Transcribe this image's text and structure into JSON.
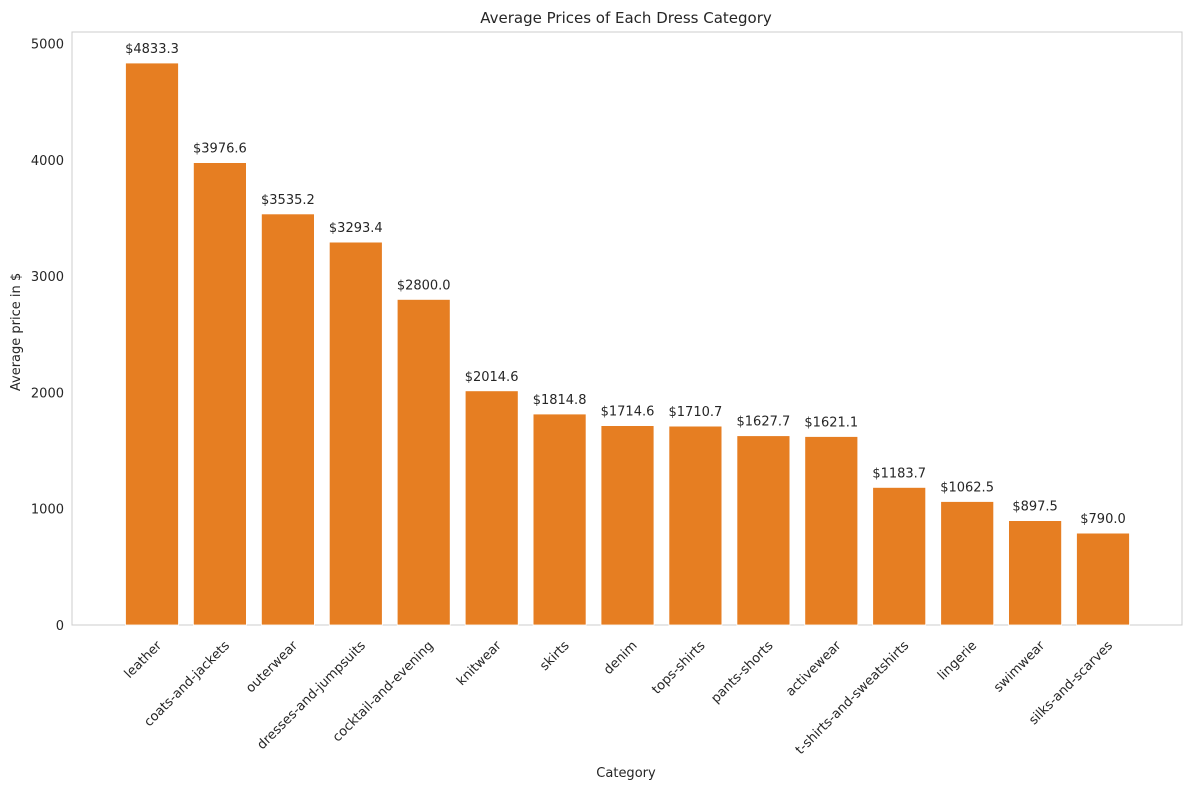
{
  "chart_data": {
    "type": "bar",
    "title": "Average Prices of Each Dress Category",
    "xlabel": "Category",
    "ylabel": "Average price in $",
    "ylim": [
      0,
      5100
    ],
    "yticks": [
      0,
      1000,
      2000,
      3000,
      4000,
      5000
    ],
    "grid": false,
    "bar_color": "#e67e22",
    "value_prefix": "$",
    "categories": [
      "leather",
      "coats-and-jackets",
      "outerwear",
      "dresses-and-jumpsuits",
      "cocktail-and-evening",
      "knitwear",
      "skirts",
      "denim",
      "tops-shirts",
      "pants-shorts",
      "activewear",
      "t-shirts-and-sweatshirts",
      "lingerie",
      "swimwear",
      "silks-and-scarves"
    ],
    "values": [
      4833.3,
      3976.6,
      3535.2,
      3293.4,
      2800.0,
      2014.6,
      1814.8,
      1714.6,
      1710.7,
      1627.7,
      1621.1,
      1183.7,
      1062.5,
      897.5,
      790.0
    ]
  }
}
